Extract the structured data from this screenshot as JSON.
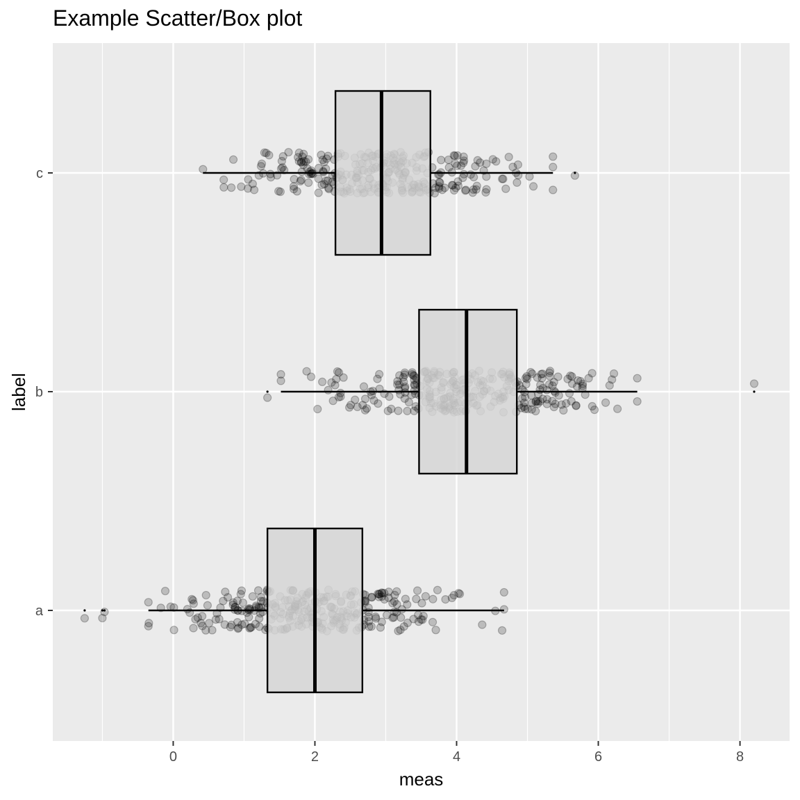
{
  "chart_data": {
    "type": "box",
    "title": "Example Scatter/Box plot",
    "xlabel": "meas",
    "ylabel": "label",
    "xlim": [
      -1.7,
      8.7
    ],
    "x_ticks": [
      0,
      2,
      4,
      6,
      8
    ],
    "x_minor": [
      -1,
      1,
      3,
      5,
      7
    ],
    "categories": [
      "a",
      "b",
      "c"
    ],
    "grid": true,
    "boxes": [
      {
        "category": "a",
        "lower_whisker": -0.35,
        "q1": 1.33,
        "median": 2.0,
        "q3": 2.67,
        "upper_whisker": 4.67,
        "outliers": [
          -1.25,
          -1.0,
          -0.97
        ]
      },
      {
        "category": "b",
        "lower_whisker": 1.52,
        "q1": 3.47,
        "median": 4.14,
        "q3": 4.85,
        "upper_whisker": 6.55,
        "outliers": [
          1.33,
          8.2
        ]
      },
      {
        "category": "c",
        "lower_whisker": 0.42,
        "q1": 2.29,
        "median": 2.94,
        "q3": 3.63,
        "upper_whisker": 5.36,
        "outliers": [
          5.67
        ]
      }
    ],
    "jitter_points": {
      "a": {
        "n": 300,
        "mean": 2.0,
        "sd": 1.0
      },
      "b": {
        "n": 300,
        "mean": 4.15,
        "sd": 1.0
      },
      "c": {
        "n": 300,
        "mean": 2.95,
        "sd": 1.0
      }
    },
    "colors": {
      "panel_background": "#ebebeb",
      "grid_line": "#ffffff",
      "box_fill": "#d6d6d6",
      "box_stroke": "#000000",
      "point_fill": "#000000"
    }
  }
}
